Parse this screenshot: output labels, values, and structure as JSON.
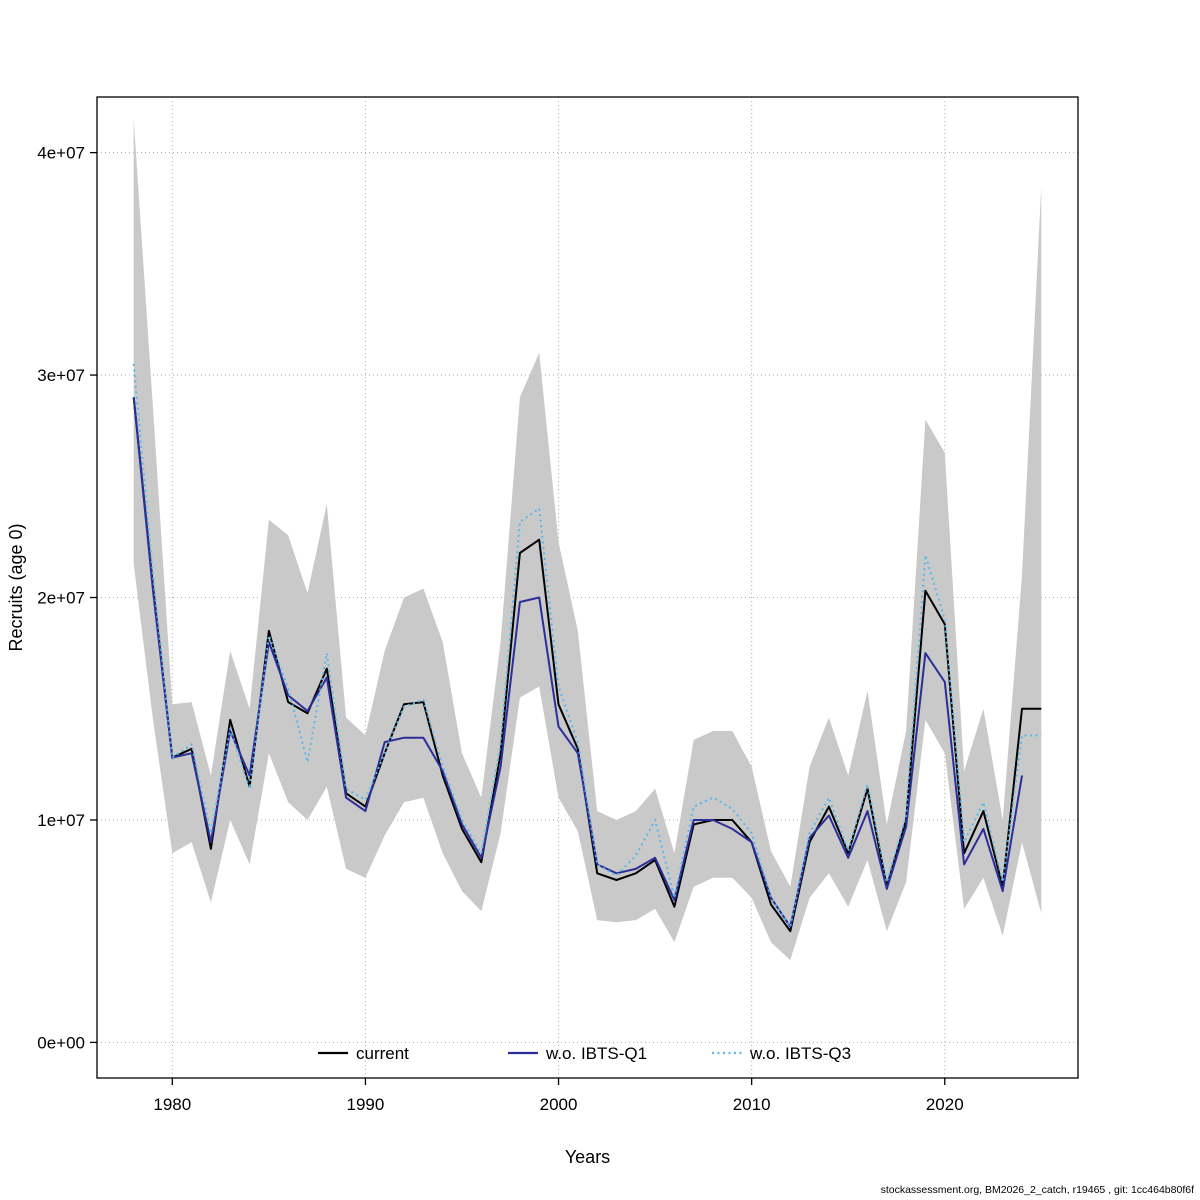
{
  "figure": {
    "footer": "stockassessment.org, BM2026_2_catch, r19465 , git: 1cc464b80f6f"
  },
  "chart_data": {
    "type": "line",
    "title": "",
    "xlabel": "Years",
    "ylabel": "Recruits (age 0)",
    "grid": "dotted",
    "legend_position": "bottom-inside",
    "xlim": [
      1976.1,
      2026.9
    ],
    "ylim": [
      -1600000.0,
      42500000.0
    ],
    "x_ticks": [
      1980,
      1990,
      2000,
      2010,
      2020
    ],
    "y_ticks": [
      0,
      10000000.0,
      20000000.0,
      30000000.0,
      40000000.0
    ],
    "y_tick_labels": [
      "0e+00",
      "1e+07",
      "2e+07",
      "3e+07",
      "4e+07"
    ],
    "years": [
      1978,
      1979,
      1980,
      1981,
      1982,
      1983,
      1984,
      1985,
      1986,
      1987,
      1988,
      1989,
      1990,
      1991,
      1992,
      1993,
      1994,
      1995,
      1996,
      1997,
      1998,
      1999,
      2000,
      2001,
      2002,
      2003,
      2004,
      2005,
      2006,
      2007,
      2008,
      2009,
      2010,
      2011,
      2012,
      2013,
      2014,
      2015,
      2016,
      2017,
      2018,
      2019,
      2020,
      2021,
      2022,
      2023,
      2024,
      2025
    ],
    "band": {
      "name": "confidence-band",
      "color": "#c9c9c9",
      "lower": [
        21500000.0,
        14500000.0,
        8500000.0,
        9000000.0,
        6300000.0,
        10000000.0,
        8000000.0,
        13000000.0,
        10800000.0,
        10000000.0,
        11500000.0,
        7800000.0,
        7400000.0,
        9300000.0,
        10800000.0,
        11000000.0,
        8500000.0,
        6800000.0,
        5900000.0,
        9400000.0,
        15500000.0,
        16000000.0,
        11000000.0,
        9500000.0,
        5500000.0,
        5400000.0,
        5500000.0,
        6000000.0,
        4500000.0,
        7000000.0,
        7400000.0,
        7400000.0,
        6500000.0,
        4500000.0,
        3700000.0,
        6500000.0,
        7600000.0,
        6100000.0,
        8200000.0,
        5000000.0,
        7200000.0,
        14500000.0,
        13000000.0,
        6000000.0,
        7400000.0,
        4800000.0,
        9000000.0,
        5800000.0
      ],
      "upper": [
        41500000.0,
        28500000.0,
        15200000.0,
        15300000.0,
        12000000.0,
        17600000.0,
        15000000.0,
        23500000.0,
        22800000.0,
        20200000.0,
        24200000.0,
        14600000.0,
        13800000.0,
        17600000.0,
        20000000.0,
        20400000.0,
        18000000.0,
        13000000.0,
        11000000.0,
        18000000.0,
        29000000.0,
        31000000.0,
        22500000.0,
        18500000.0,
        10400000.0,
        10000000.0,
        10400000.0,
        11400000.0,
        8500000.0,
        13600000.0,
        14000000.0,
        14000000.0,
        12400000.0,
        8600000.0,
        7000000.0,
        12400000.0,
        14600000.0,
        12000000.0,
        15800000.0,
        9800000.0,
        14000000.0,
        28000000.0,
        26500000.0,
        12200000.0,
        15000000.0,
        10000000.0,
        21000000.0,
        38500000.0
      ]
    },
    "series": [
      {
        "name": "current",
        "color": "#000000",
        "style": "solid",
        "values": [
          29000000.0,
          20500000.0,
          12800000.0,
          13200000.0,
          8700000.0,
          14500000.0,
          11500000.0,
          18500000.0,
          15300000.0,
          14800000.0,
          16800000.0,
          11200000.0,
          10600000.0,
          13000000.0,
          15200000.0,
          15300000.0,
          12000000.0,
          9600000.0,
          8100000.0,
          13000000.0,
          22000000.0,
          22600000.0,
          15200000.0,
          13200000.0,
          7600000.0,
          7300000.0,
          7600000.0,
          8200000.0,
          6100000.0,
          9800000.0,
          10000000.0,
          10000000.0,
          9000000.0,
          6200000.0,
          5000000.0,
          9000000.0,
          10600000.0,
          8500000.0,
          11400000.0,
          7000000.0,
          10000000.0,
          20300000.0,
          18800000.0,
          8500000.0,
          10400000.0,
          7000000.0,
          15000000.0,
          15000000.0
        ]
      },
      {
        "name": "w.o. IBTS-Q1",
        "color": "#2d2d9a",
        "style": "solid",
        "values": [
          29000000.0,
          20300000.0,
          12800000.0,
          13000000.0,
          9000000.0,
          14000000.0,
          12000000.0,
          18000000.0,
          15600000.0,
          14900000.0,
          16400000.0,
          11000000.0,
          10400000.0,
          13500000.0,
          13700000.0,
          13700000.0,
          12200000.0,
          9800000.0,
          8300000.0,
          12400000.0,
          19800000.0,
          20000000.0,
          14200000.0,
          13000000.0,
          8000000.0,
          7600000.0,
          7800000.0,
          8300000.0,
          6400000.0,
          10000000.0,
          10000000.0,
          9600000.0,
          9000000.0,
          6500000.0,
          5200000.0,
          9200000.0,
          10200000.0,
          8300000.0,
          10400000.0,
          6900000.0,
          9700000.0,
          17500000.0,
          16200000.0,
          8000000.0,
          9600000.0,
          6800000.0,
          12000000.0,
          null
        ]
      },
      {
        "name": "w.o. IBTS-Q3",
        "color": "#57b8e8",
        "style": "dotted",
        "values": [
          30500000.0,
          21000000.0,
          12800000.0,
          13400000.0,
          9400000.0,
          14100000.0,
          11400000.0,
          18300000.0,
          15900000.0,
          12600000.0,
          17500000.0,
          11400000.0,
          10900000.0,
          13000000.0,
          15100000.0,
          15400000.0,
          12400000.0,
          10000000.0,
          8500000.0,
          13400000.0,
          23400000.0,
          24000000.0,
          16000000.0,
          13500000.0,
          8000000.0,
          7500000.0,
          8400000.0,
          10000000.0,
          6500000.0,
          10600000.0,
          11000000.0,
          10500000.0,
          9400000.0,
          6500000.0,
          5200000.0,
          9400000.0,
          11000000.0,
          8600000.0,
          11600000.0,
          7200000.0,
          10200000.0,
          21900000.0,
          19000000.0,
          9000000.0,
          10800000.0,
          7200000.0,
          13800000.0,
          13800000.0
        ]
      }
    ],
    "legend": [
      "current",
      "w.o. IBTS-Q1",
      "w.o. IBTS-Q3"
    ]
  }
}
